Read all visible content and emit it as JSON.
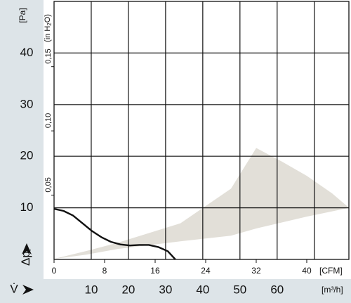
{
  "chart_data": {
    "type": "line",
    "y_unit": "[Pa]",
    "y2_unit": {
      "open": "(in H",
      "sub": "2",
      "close": "O)"
    },
    "y_label": {
      "main": "Δp",
      "sub": "f"
    },
    "x_unit": "[CFM]",
    "x2_label": "V̇",
    "x2_unit": "[m³/h]",
    "xlim": [
      0,
      46.67
    ],
    "xticks": [
      0,
      8,
      16,
      24,
      32,
      40
    ],
    "x2lim": [
      0,
      79.3
    ],
    "x2ticks": [
      10,
      20,
      30,
      40,
      50,
      60
    ],
    "x2_gridlines": [
      10,
      20,
      30,
      40,
      50,
      60,
      70
    ],
    "ylim": [
      0,
      50
    ],
    "yticks": [
      10,
      20,
      30,
      40
    ],
    "y2lim": [
      0,
      0.2007
    ],
    "y2ticks": [
      {
        "value": 0.05,
        "label": "0,05"
      },
      {
        "value": 0.1,
        "label": "0,10"
      },
      {
        "value": 0.15,
        "label": "0,15"
      }
    ],
    "grid": true,
    "series": [
      {
        "kind": "area",
        "color": "#e2dfd8",
        "x": [
          0,
          5,
          10,
          20,
          28,
          32,
          40,
          46.7,
          44,
          40,
          36,
          32,
          28,
          20,
          10,
          5,
          0
        ],
        "values": [
          0.1,
          0.9,
          2.0,
          3.5,
          4.6,
          6,
          8.3,
          10,
          12.8,
          16.2,
          19,
          21.6,
          13.7,
          7,
          3.2,
          1.6,
          0.1
        ]
      },
      {
        "kind": "line",
        "color": "#111111",
        "x": [
          0,
          1.5,
          3,
          4.5,
          6,
          7.5,
          9,
          10.5,
          12,
          13.5,
          15,
          16.5,
          18,
          19.2
        ],
        "values": [
          9.8,
          9.4,
          8.5,
          7,
          5.5,
          4.3,
          3.4,
          2.9,
          2.7,
          2.8,
          2.8,
          2.4,
          1.6,
          0
        ]
      }
    ]
  }
}
